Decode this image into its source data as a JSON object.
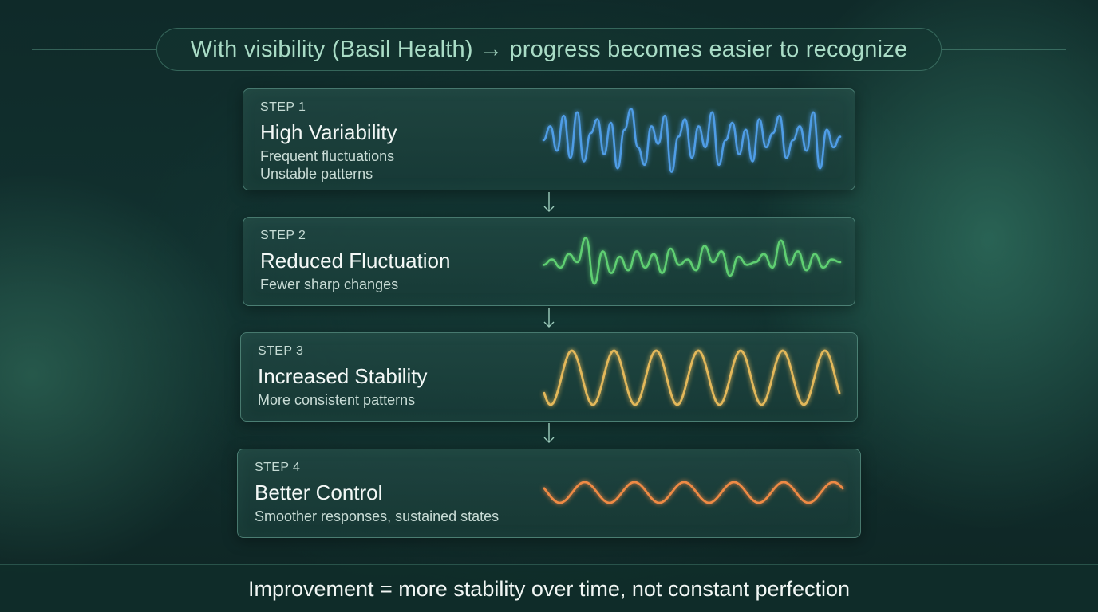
{
  "title": "With visibility (Basil Health) → progress becomes easier to recognize",
  "steps": [
    {
      "label": "STEP 1",
      "title": "High Variability",
      "desc": [
        "Frequent fluctuations",
        "Unstable patterns"
      ],
      "wave_color": "#4f9de6",
      "wave_type": "high-variability"
    },
    {
      "label": "STEP 2",
      "title": "Reduced Fluctuation",
      "desc": [
        "Fewer sharp changes"
      ],
      "wave_color": "#5fcf72",
      "wave_type": "reduced-fluctuation"
    },
    {
      "label": "STEP 3",
      "title": "Increased Stability",
      "desc": [
        "More consistent patterns"
      ],
      "wave_color": "#e3b85a",
      "wave_type": "regular-sine"
    },
    {
      "label": "STEP 4",
      "title": "Better Control",
      "desc": [
        "Smoother responses, sustained states"
      ],
      "wave_color": "#ee8a45",
      "wave_type": "smooth-sine"
    }
  ],
  "footer": "Improvement = more stability over time, not constant perfection",
  "colors": {
    "accent": "#a9dcc6",
    "background": "#123230"
  }
}
